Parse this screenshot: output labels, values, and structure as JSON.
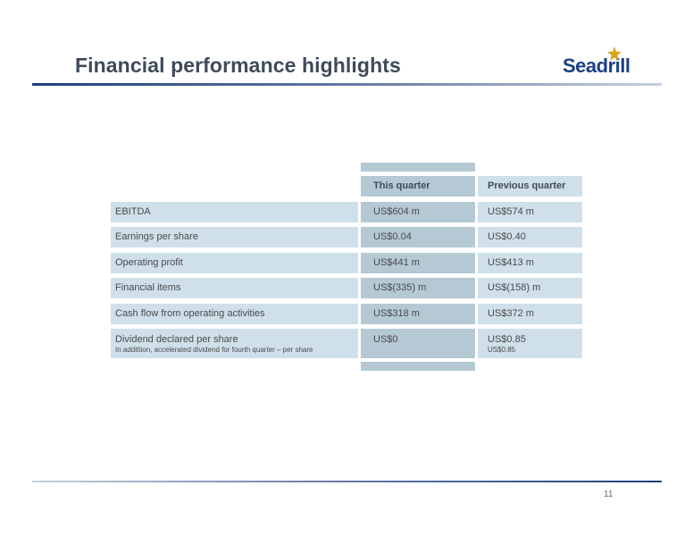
{
  "slide": {
    "title": "Financial performance highlights",
    "logo_text": "Seadrill",
    "page_number": "11"
  },
  "table": {
    "headers": {
      "this": "This quarter",
      "previous": "Previous quarter"
    },
    "rows": [
      {
        "label": "EBITDA",
        "this": "US$604 m",
        "previous": "US$574 m"
      },
      {
        "label": "Earnings per share",
        "this": "US$0.04",
        "previous": "US$0.40"
      },
      {
        "label": "Operating profit",
        "this": "US$441 m",
        "previous": "US$413 m"
      },
      {
        "label": "Financial items",
        "this": "US$(335) m",
        "previous": "US$(158) m"
      },
      {
        "label": "Cash flow from operating activities",
        "this": "US$318 m",
        "previous": "US$372 m"
      }
    ],
    "dividend": {
      "label": "Dividend declared per share",
      "sublabel": "In addittion, accelerated dividend for fourth quarter – per share",
      "this": "US$0",
      "previous": "US$0.85",
      "previous_sub": "US$0.85"
    }
  },
  "colors": {
    "title": "#3f4a5a",
    "logo": "#1c3f84",
    "logo_star": "#d8a520",
    "label_cells": "#cfe0ea",
    "this_quarter_cells": "#b5c9d4"
  }
}
